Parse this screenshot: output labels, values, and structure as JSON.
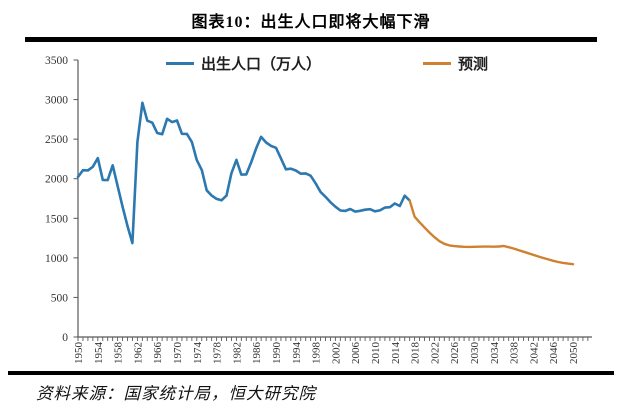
{
  "title": "图表10：出生人口即将大幅下滑",
  "source": "资料来源：国家统计局，恒大研究院",
  "colors": {
    "actual": "#2C78B0",
    "forecast": "#D0812F",
    "axis": "#595959",
    "tick_label": "#333333",
    "rule": "#000000"
  },
  "chart_data": {
    "type": "line",
    "title": "图表10：出生人口即将大幅下滑",
    "xlabel": "",
    "ylabel": "出生人口（万人）",
    "ylim": [
      0,
      3500
    ],
    "xlim": [
      1950,
      2050
    ],
    "grid": false,
    "legend_position": "top-inside",
    "legend": [
      "出生人口（万人）",
      "预测"
    ],
    "yticks": [
      0,
      500,
      1000,
      1500,
      2000,
      2500,
      3000,
      3500
    ],
    "xticks": [
      1950,
      1954,
      1958,
      1962,
      1966,
      1970,
      1974,
      1978,
      1982,
      1986,
      1990,
      1994,
      1998,
      2002,
      2006,
      2010,
      2014,
      2018,
      2022,
      2026,
      2030,
      2034,
      2038,
      2042,
      2046,
      2050
    ],
    "series": [
      {
        "name": "出生人口（万人）",
        "color": "#2C78B0",
        "x": [
          1950,
          1951,
          1952,
          1953,
          1954,
          1955,
          1956,
          1957,
          1958,
          1959,
          1960,
          1961,
          1962,
          1963,
          1964,
          1965,
          1966,
          1967,
          1968,
          1969,
          1970,
          1971,
          1972,
          1973,
          1974,
          1975,
          1976,
          1977,
          1978,
          1979,
          1980,
          1981,
          1982,
          1983,
          1984,
          1985,
          1986,
          1987,
          1988,
          1989,
          1990,
          1991,
          1992,
          1993,
          1994,
          1995,
          1996,
          1997,
          1998,
          1999,
          2000,
          2001,
          2002,
          2003,
          2004,
          2005,
          2006,
          2007,
          2008,
          2009,
          2010,
          2011,
          2012,
          2013,
          2014,
          2015,
          2016,
          2017
        ],
        "values": [
          2023,
          2107,
          2105,
          2151,
          2260,
          1984,
          1982,
          2169,
          1909,
          1650,
          1402,
          1187,
          2464,
          2959,
          2733,
          2708,
          2578,
          2563,
          2757,
          2715,
          2736,
          2567,
          2566,
          2463,
          2235,
          2109,
          1853,
          1787,
          1745,
          1727,
          1787,
          2069,
          2238,
          2052,
          2055,
          2211,
          2384,
          2529,
          2457,
          2414,
          2391,
          2258,
          2119,
          2126,
          2104,
          2063,
          2067,
          2038,
          1942,
          1834,
          1771,
          1702,
          1647,
          1599,
          1593,
          1617,
          1585,
          1594,
          1608,
          1615,
          1588,
          1600,
          1635,
          1640,
          1687,
          1655,
          1786,
          1723
        ]
      },
      {
        "name": "预测",
        "color": "#D0812F",
        "x": [
          2017,
          2018,
          2019,
          2020,
          2021,
          2022,
          2023,
          2024,
          2025,
          2026,
          2027,
          2028,
          2029,
          2030,
          2031,
          2032,
          2033,
          2034,
          2035,
          2036,
          2037,
          2038,
          2039,
          2040,
          2041,
          2042,
          2043,
          2044,
          2045,
          2046,
          2047,
          2048,
          2049,
          2050
        ],
        "values": [
          1723,
          1520,
          1450,
          1385,
          1320,
          1262,
          1212,
          1178,
          1158,
          1148,
          1143,
          1140,
          1139,
          1140,
          1141,
          1142,
          1142,
          1141,
          1143,
          1150,
          1135,
          1118,
          1098,
          1078,
          1057,
          1037,
          1017,
          998,
          980,
          963,
          948,
          936,
          927,
          920
        ]
      }
    ]
  }
}
